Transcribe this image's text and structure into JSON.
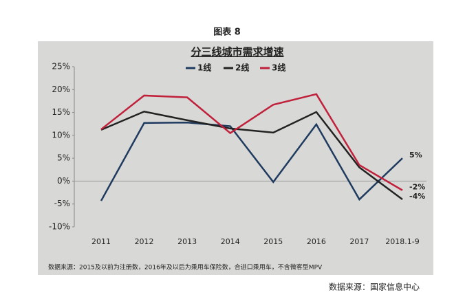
{
  "chart_data": {
    "type": "line",
    "figure_label": "图表 8",
    "title": "分三线城市需求增速",
    "categories": [
      "2011",
      "2012",
      "2013",
      "2014",
      "2015",
      "2016",
      "2017",
      "2018.1-9"
    ],
    "series": [
      {
        "name": "1线",
        "color": "#1f3a5f",
        "values": [
          -4.3,
          12.7,
          12.8,
          12,
          -0.2,
          12.4,
          -4,
          5
        ],
        "value_labels": [
          null,
          null,
          null,
          null,
          null,
          null,
          null,
          "5%"
        ]
      },
      {
        "name": "2线",
        "color": "#222222",
        "values": [
          11.2,
          15.2,
          13.3,
          11.5,
          10.6,
          15.1,
          3,
          -4
        ],
        "value_labels": [
          null,
          null,
          null,
          null,
          null,
          null,
          null,
          "-4%"
        ]
      },
      {
        "name": "3线",
        "color": "#c0203a",
        "values": [
          11.3,
          18.7,
          18.3,
          10.5,
          16.7,
          19,
          3.5,
          -2
        ],
        "value_labels": [
          null,
          null,
          null,
          null,
          null,
          null,
          null,
          "-2%"
        ]
      }
    ],
    "ylim": [
      -10,
      25
    ],
    "yticks": [
      {
        "value": -10,
        "label": "-10%"
      },
      {
        "value": -5,
        "label": "-5%"
      },
      {
        "value": 0,
        "label": "0%"
      },
      {
        "value": 5,
        "label": "5%"
      },
      {
        "value": 10,
        "label": "10%"
      },
      {
        "value": 15,
        "label": "15%"
      },
      {
        "value": 20,
        "label": "20%"
      },
      {
        "value": 25,
        "label": "25%"
      }
    ],
    "legend": "top",
    "note": "数据来源：2015及以前为注册数，2016年及以后为乘用车保险数，合进口乘用车，不含微客型MPV",
    "source": "数据来源：国家信息中心"
  }
}
